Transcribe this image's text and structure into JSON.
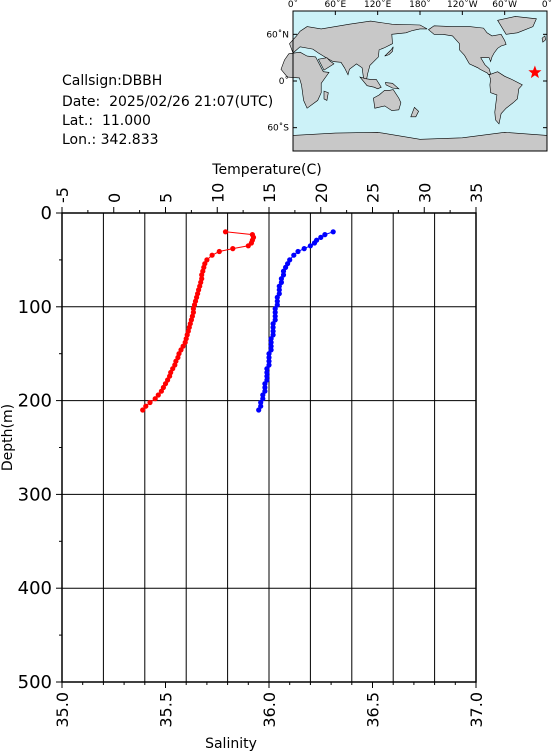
{
  "info": {
    "callsign_label": "Callsign:",
    "callsign": "DBBH",
    "date_label": "Date:",
    "date": "2025/02/26 21:07(UTC)",
    "lat_label": "Lat.:",
    "lat": "11.000",
    "lon_label": "Lon.:",
    "lon": "342.833"
  },
  "map": {
    "top_ticks": [
      "0˚",
      "60˚E",
      "120˚E",
      "180˚",
      "120˚W",
      "60˚W",
      "0˚"
    ],
    "lat_ticks": [
      "60˚N",
      "0˚",
      "60˚S"
    ],
    "station": {
      "lon": 342.833,
      "lat": 11.0
    },
    "colors": {
      "ocean": "#ccf2f8",
      "land": "#c8c8c8",
      "marker": "#ff0000"
    }
  },
  "chart_data": {
    "type": "line",
    "title": "",
    "top_axis_label": "Temperature(C)",
    "bottom_axis_label": "Salinity",
    "ylabel": "Depth(m)",
    "temperature_range": [
      -5,
      35
    ],
    "temperature_ticks": [
      "-5",
      "0",
      "5",
      "10",
      "15",
      "20",
      "25",
      "30",
      "35"
    ],
    "salinity_range": [
      35.0,
      37.0
    ],
    "salinity_ticks": [
      "35.0",
      "35.5",
      "36.0",
      "36.5",
      "37.0"
    ],
    "depth_range": [
      0,
      500
    ],
    "depth_ticks": [
      "0",
      "100",
      "200",
      "300",
      "400",
      "500"
    ],
    "grid": true,
    "series": [
      {
        "quantity": "temperature",
        "color": "#ff0000",
        "points": [
          [
            20,
            10.8
          ],
          [
            23,
            13.4
          ],
          [
            26,
            13.5
          ],
          [
            29,
            13.4
          ],
          [
            32,
            13.3
          ],
          [
            35,
            13.0
          ],
          [
            38,
            11.5
          ],
          [
            41,
            10.2
          ],
          [
            45,
            9.5
          ],
          [
            50,
            9.0
          ],
          [
            54,
            8.8
          ],
          [
            58,
            8.7
          ],
          [
            62,
            8.6
          ],
          [
            66,
            8.5
          ],
          [
            70,
            8.5
          ],
          [
            74,
            8.4
          ],
          [
            78,
            8.3
          ],
          [
            82,
            8.2
          ],
          [
            86,
            8.1
          ],
          [
            90,
            8.0
          ],
          [
            94,
            7.9
          ],
          [
            98,
            7.8
          ],
          [
            102,
            7.7
          ],
          [
            106,
            7.7
          ],
          [
            110,
            7.6
          ],
          [
            114,
            7.5
          ],
          [
            118,
            7.4
          ],
          [
            122,
            7.3
          ],
          [
            126,
            7.2
          ],
          [
            130,
            7.1
          ],
          [
            134,
            7.0
          ],
          [
            138,
            6.9
          ],
          [
            142,
            6.7
          ],
          [
            146,
            6.5
          ],
          [
            150,
            6.3
          ],
          [
            154,
            6.2
          ],
          [
            158,
            6.0
          ],
          [
            162,
            5.9
          ],
          [
            166,
            5.7
          ],
          [
            170,
            5.5
          ],
          [
            174,
            5.4
          ],
          [
            178,
            5.2
          ],
          [
            182,
            5.0
          ],
          [
            186,
            4.8
          ],
          [
            190,
            4.6
          ],
          [
            194,
            4.3
          ],
          [
            198,
            4.0
          ],
          [
            202,
            3.5
          ],
          [
            206,
            3.1
          ],
          [
            210,
            2.8
          ]
        ]
      },
      {
        "quantity": "salinity",
        "color": "#0000ff",
        "points": [
          [
            20,
            36.31
          ],
          [
            23,
            36.27
          ],
          [
            26,
            36.25
          ],
          [
            29,
            36.23
          ],
          [
            32,
            36.22
          ],
          [
            35,
            36.2
          ],
          [
            38,
            36.17
          ],
          [
            41,
            36.14
          ],
          [
            45,
            36.12
          ],
          [
            50,
            36.1
          ],
          [
            54,
            36.09
          ],
          [
            58,
            36.08
          ],
          [
            62,
            36.07
          ],
          [
            66,
            36.07
          ],
          [
            70,
            36.06
          ],
          [
            74,
            36.06
          ],
          [
            78,
            36.05
          ],
          [
            82,
            36.05
          ],
          [
            86,
            36.05
          ],
          [
            90,
            36.04
          ],
          [
            94,
            36.04
          ],
          [
            98,
            36.04
          ],
          [
            102,
            36.03
          ],
          [
            106,
            36.03
          ],
          [
            110,
            36.03
          ],
          [
            114,
            36.03
          ],
          [
            118,
            36.02
          ],
          [
            122,
            36.02
          ],
          [
            126,
            36.02
          ],
          [
            130,
            36.02
          ],
          [
            134,
            36.01
          ],
          [
            138,
            36.01
          ],
          [
            142,
            36.01
          ],
          [
            146,
            36.01
          ],
          [
            150,
            36.0
          ],
          [
            154,
            36.0
          ],
          [
            158,
            36.0
          ],
          [
            162,
            36.0
          ],
          [
            166,
            35.99
          ],
          [
            170,
            35.99
          ],
          [
            174,
            35.99
          ],
          [
            178,
            35.99
          ],
          [
            182,
            35.98
          ],
          [
            186,
            35.98
          ],
          [
            190,
            35.98
          ],
          [
            194,
            35.97
          ],
          [
            198,
            35.97
          ],
          [
            202,
            35.96
          ],
          [
            206,
            35.96
          ],
          [
            210,
            35.95
          ]
        ]
      }
    ]
  }
}
